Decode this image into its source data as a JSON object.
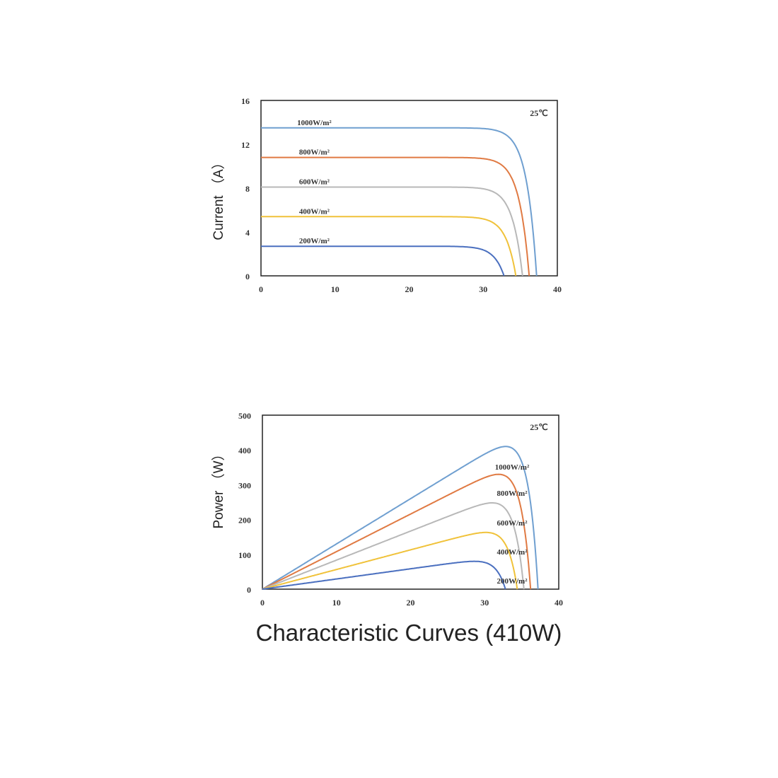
{
  "caption": "Characteristic Curves (410W)",
  "chart_data": [
    {
      "type": "line",
      "ylabel": "Current （A）",
      "annotation": "25℃",
      "xlim": [
        0,
        40
      ],
      "ylim": [
        0,
        16
      ],
      "xticks": [
        "0",
        "10",
        "20",
        "30",
        "40"
      ],
      "yticks": [
        "0",
        "4",
        "8",
        "12",
        "16"
      ],
      "series": [
        {
          "name": "1000W/m²",
          "color": "#6f9fd0",
          "isc": 13.5,
          "voc": 37.2
        },
        {
          "name": "800W/m²",
          "color": "#e07a43",
          "isc": 10.8,
          "voc": 36.2
        },
        {
          "name": "600W/m²",
          "color": "#b8b8b8",
          "isc": 8.1,
          "voc": 35.3
        },
        {
          "name": "400W/m²",
          "color": "#f0c23a",
          "isc": 5.4,
          "voc": 34.4
        },
        {
          "name": "200W/m²",
          "color": "#4a6fbf",
          "isc": 2.7,
          "voc": 32.8
        }
      ]
    },
    {
      "type": "line",
      "ylabel": "Power （W）",
      "annotation": "25℃",
      "xlim": [
        0,
        40
      ],
      "ylim": [
        0,
        500
      ],
      "xticks": [
        "0",
        "10",
        "20",
        "30",
        "40"
      ],
      "yticks": [
        "0",
        "100",
        "200",
        "300",
        "400",
        "500"
      ],
      "series": [
        {
          "name": "1000W/m²",
          "color": "#6f9fd0",
          "isc": 13.5,
          "voc": 37.2,
          "pmax": 410,
          "vmp": 31
        },
        {
          "name": "800W/m²",
          "color": "#e07a43",
          "isc": 10.8,
          "voc": 36.2,
          "pmax": 330,
          "vmp": 30.5
        },
        {
          "name": "600W/m²",
          "color": "#b8b8b8",
          "isc": 8.1,
          "voc": 35.3,
          "pmax": 248,
          "vmp": 30.2
        },
        {
          "name": "400W/m²",
          "color": "#f0c23a",
          "isc": 5.4,
          "voc": 34.4,
          "pmax": 163,
          "vmp": 29.8
        },
        {
          "name": "200W/m²",
          "color": "#4a6fbf",
          "isc": 2.7,
          "voc": 32.8,
          "pmax": 80,
          "vmp": 29.2
        }
      ]
    }
  ]
}
